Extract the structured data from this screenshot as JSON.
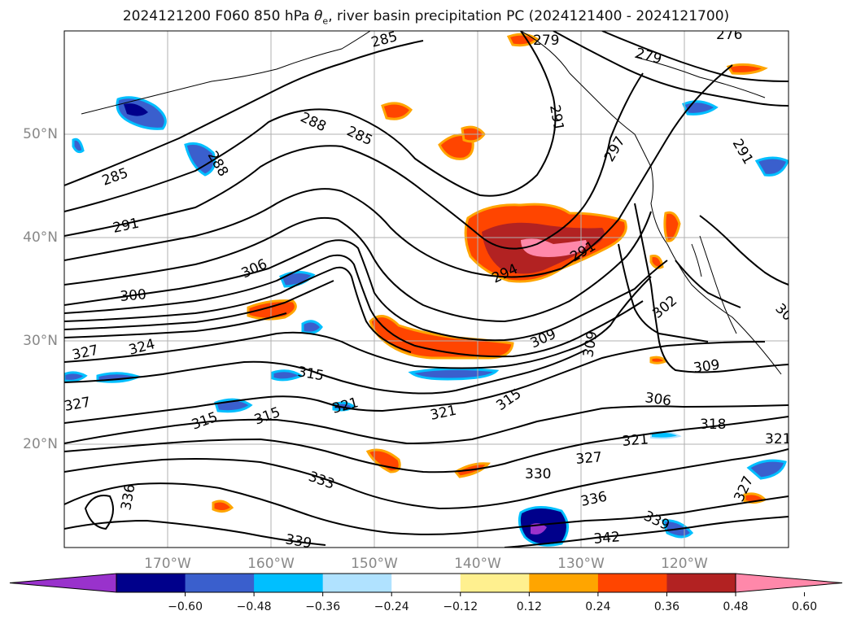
{
  "title_main": "2024121200 F060 850 hPa ",
  "title_theta": "θ",
  "title_sub": "e",
  "title_rest": ", river basin precipitation PC (2024121400 - 2024121700)",
  "lat_labels": [
    "50°N",
    "40°N",
    "30°N",
    "20°N"
  ],
  "lon_labels": [
    "170°W",
    "160°W",
    "150°W",
    "140°W",
    "130°W",
    "120°W"
  ],
  "contour_labels": [
    "285",
    "285",
    "285",
    "288",
    "288",
    "279",
    "276",
    "279",
    "291",
    "291",
    "291",
    "294",
    "291",
    "297",
    "306",
    "300",
    "309",
    "309",
    "309",
    "324",
    "327",
    "327",
    "315",
    "315",
    "315",
    "321",
    "321",
    "315",
    "306",
    "318",
    "321",
    "327",
    "330",
    "333",
    "336",
    "336",
    "339",
    "339",
    "342",
    "327",
    "321",
    "302",
    "30"
  ],
  "colorbar": {
    "colors": [
      "#9932cc",
      "#00008b",
      "#3a5fcd",
      "#00bfff",
      "#b0e2ff",
      "#ffffff",
      "#fff08f",
      "#ffa500",
      "#ff4500",
      "#b22222",
      "#ff88aa"
    ],
    "ticks": [
      "−0.60",
      "−0.48",
      "−0.36",
      "−0.24",
      "−0.12",
      "0.12",
      "0.24",
      "0.36",
      "0.48",
      "0.60"
    ]
  },
  "colors": {
    "grid": "#b0b0b0",
    "contour": "#000000",
    "coast": "#000000"
  }
}
